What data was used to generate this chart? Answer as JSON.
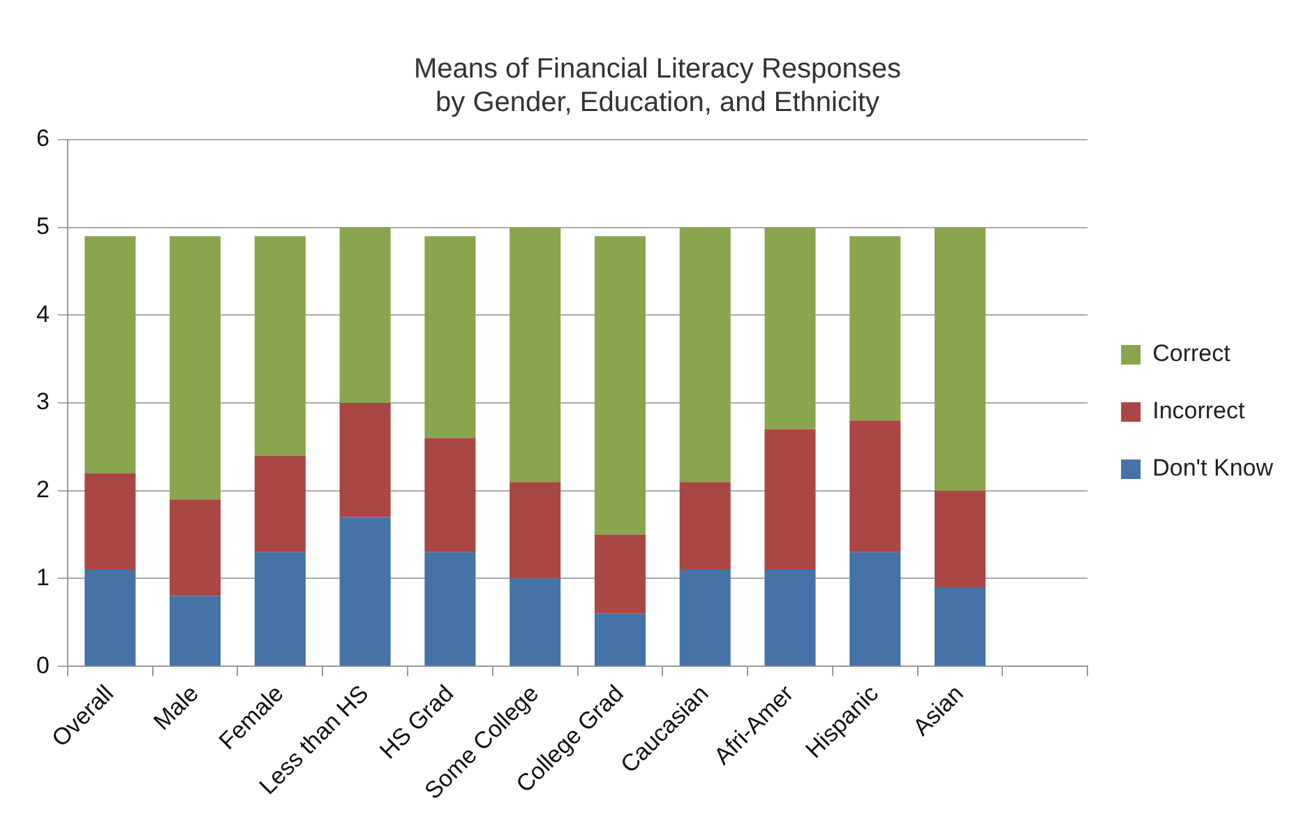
{
  "chart_data": {
    "type": "bar",
    "title": "Means of Financial Literacy Responses\nby Gender, Education, and Ethnicity",
    "categories": [
      "Overall",
      "Male",
      "Female",
      "Less than HS",
      "HS Grad",
      "Some College",
      "College Grad",
      "Caucasian",
      "Afri-Amer",
      "Hispanic",
      "Asian",
      null
    ],
    "stacked": true,
    "series": [
      {
        "name": "Don't Know",
        "color": "#4572a7",
        "values": [
          1.1,
          0.8,
          1.3,
          1.7,
          1.3,
          1.0,
          0.6,
          1.1,
          1.1,
          1.3,
          0.9,
          null
        ]
      },
      {
        "name": "Incorrect",
        "color": "#aa4643",
        "values": [
          1.1,
          1.1,
          1.1,
          1.3,
          1.3,
          1.1,
          0.9,
          1.0,
          1.6,
          1.5,
          1.1,
          null
        ]
      },
      {
        "name": "Correct",
        "color": "#89a54e",
        "values": [
          2.7,
          3.0,
          2.5,
          2.0,
          2.3,
          2.9,
          3.4,
          2.9,
          2.3,
          2.1,
          3.0,
          null
        ]
      }
    ],
    "ylim": [
      0,
      6
    ],
    "yticks": [
      0,
      1,
      2,
      3,
      4,
      5,
      6
    ],
    "grid": "y",
    "legend": "right"
  }
}
